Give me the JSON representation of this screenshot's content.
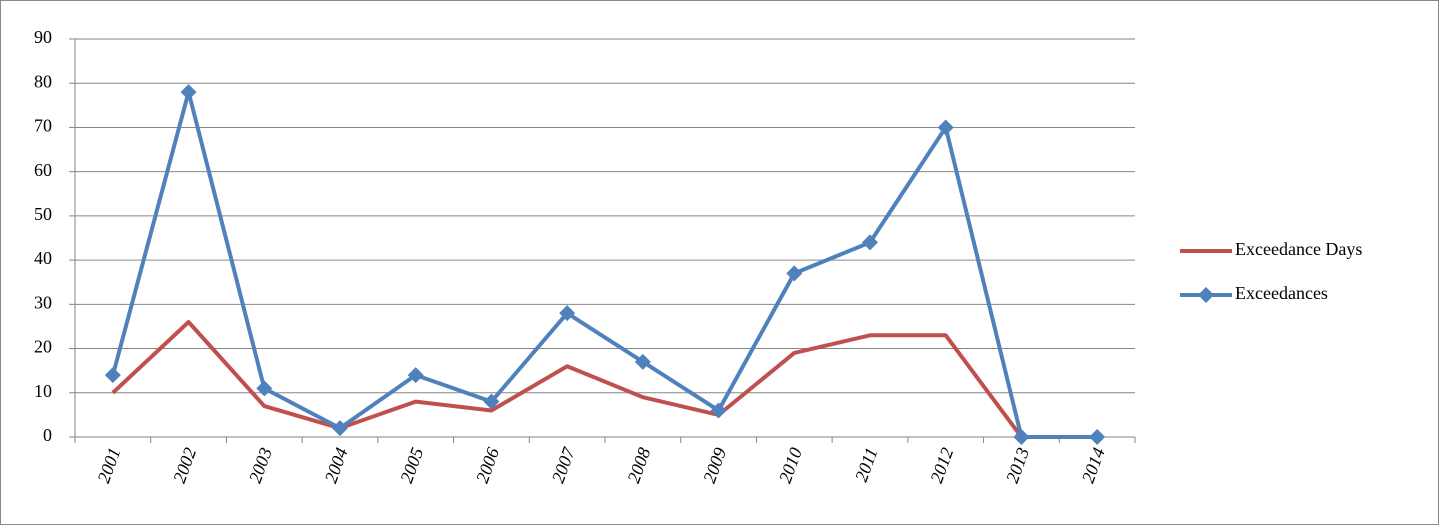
{
  "chart_data": {
    "type": "line",
    "categories": [
      "2001",
      "2002",
      "2003",
      "2004",
      "2005",
      "2006",
      "2007",
      "2008",
      "2009",
      "2010",
      "2011",
      "2012",
      "2013",
      "2014"
    ],
    "series": [
      {
        "name": "Exceedance Days",
        "color": "#c0504d",
        "marker": "none",
        "values": [
          10,
          26,
          7,
          2,
          8,
          6,
          16,
          9,
          5,
          19,
          23,
          23,
          0,
          0
        ]
      },
      {
        "name": "Exceedances",
        "color": "#4f81bd",
        "marker": "diamond",
        "values": [
          14,
          78,
          11,
          2,
          14,
          8,
          28,
          17,
          6,
          37,
          44,
          70,
          0,
          0
        ]
      }
    ],
    "ylim": [
      0,
      90
    ],
    "yticks": [
      0,
      10,
      20,
      30,
      40,
      50,
      60,
      70,
      80,
      90
    ],
    "grid": true,
    "legend": "right"
  }
}
